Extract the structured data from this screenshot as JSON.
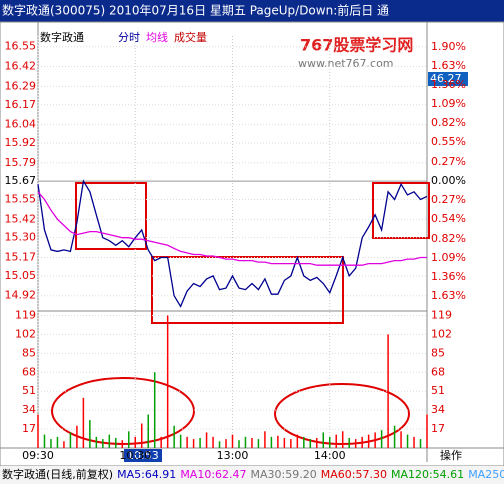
{
  "title_bar": "数字政通(300075) 2010年07月16日 星期五 PageUp/Down:前后日 通",
  "header": {
    "stock": "数字政通",
    "mode": "分时",
    "avg": "均线",
    "volume": "成交量"
  },
  "watermark": {
    "brand": "767股票学习网",
    "url": "www.net767.com"
  },
  "side_value": "46.27",
  "cursor_time": "10:53",
  "action": "操作",
  "status": [
    "数字政通(日线,前复权)",
    "MA5:64.91",
    "MA10:62.47",
    "MA30:59.20",
    "MA60:57.30",
    "MA120:54.61",
    "MA250:"
  ],
  "chart_data": [
    {
      "type": "line",
      "ylim": [
        14.82,
        16.62
      ],
      "y2lim": [
        -1.843,
        2.056
      ],
      "xlim": [
        0,
        240
      ],
      "yticks": [
        16.55,
        16.42,
        16.29,
        16.17,
        16.04,
        15.92,
        15.79,
        15.67,
        15.55,
        15.42,
        {
          "value": 15.3,
          "label": "15.30"
        },
        15.17,
        15.05,
        14.92
      ],
      "y2ticks": [
        {
          "value": 1.9,
          "label": "1.90%"
        },
        {
          "value": 1.63,
          "label": "1.63%"
        },
        {
          "value": 1.36,
          "label": "1.36%"
        },
        {
          "value": 1.09,
          "label": "1.09%"
        },
        {
          "value": 0.82,
          "label": "0.82%"
        },
        {
          "value": 0.55,
          "label": "0.55%"
        },
        {
          "value": 0.27,
          "label": "0.27%"
        },
        {
          "value": 0,
          "label": "0.00%"
        },
        {
          "value": -0.27,
          "label": "0.27%"
        },
        {
          "value": -0.54,
          "label": "0.54%"
        },
        {
          "value": -0.82,
          "label": "0.82%"
        },
        {
          "value": -1.09,
          "label": "1.09%"
        },
        {
          "value": -1.36,
          "label": "1.36%"
        },
        {
          "value": -1.63,
          "label": "1.63%"
        }
      ],
      "xticks": [
        {
          "value": 0,
          "label": "09:30"
        },
        {
          "value": 60,
          "label": "10:30"
        },
        {
          "value": 120,
          "label": "13:00"
        },
        {
          "value": 180,
          "label": "14:00"
        }
      ],
      "grid": true,
      "tick_color": "#e00000",
      "x": [
        0,
        4,
        8,
        12,
        16,
        20,
        24,
        28,
        32,
        36,
        40,
        44,
        48,
        52,
        56,
        60,
        64,
        68,
        72,
        76,
        80,
        84,
        88,
        92,
        96,
        100,
        104,
        108,
        112,
        116,
        120,
        124,
        128,
        132,
        136,
        140,
        144,
        148,
        152,
        156,
        160,
        164,
        168,
        172,
        176,
        180,
        184,
        188,
        192,
        196,
        200,
        204,
        208,
        212,
        216,
        220,
        224,
        228,
        232,
        236,
        240
      ],
      "series": [
        {
          "color": "#000090",
          "values": [
            15.65,
            15.35,
            15.22,
            15.21,
            15.22,
            15.21,
            15.4,
            15.67,
            15.6,
            15.45,
            15.3,
            15.28,
            15.25,
            15.28,
            15.24,
            15.3,
            15.35,
            15.22,
            15.15,
            15.17,
            15.17,
            14.92,
            14.85,
            14.95,
            15.0,
            14.98,
            15.03,
            15.05,
            14.96,
            14.97,
            15.05,
            14.97,
            14.96,
            15.0,
            14.96,
            15.03,
            14.93,
            14.93,
            15.02,
            15.05,
            15.17,
            15.05,
            15.02,
            15.04,
            15.0,
            14.94,
            15.05,
            15.17,
            15.05,
            15.1,
            15.3,
            15.37,
            15.45,
            15.35,
            15.6,
            15.55,
            15.65,
            15.58,
            15.6,
            15.55,
            15.57
          ]
        },
        {
          "color": "#e000e0",
          "values": [
            15.6,
            15.55,
            15.48,
            15.42,
            15.38,
            15.34,
            15.32,
            15.33,
            15.34,
            15.34,
            15.33,
            15.32,
            15.31,
            15.3,
            15.3,
            15.29,
            15.29,
            15.28,
            15.27,
            15.26,
            15.25,
            15.23,
            15.21,
            15.2,
            15.19,
            15.19,
            15.18,
            15.18,
            15.17,
            15.16,
            15.16,
            15.15,
            15.15,
            15.15,
            15.14,
            15.14,
            15.13,
            15.13,
            15.13,
            15.13,
            15.13,
            15.13,
            15.13,
            15.12,
            15.12,
            15.12,
            15.12,
            15.12,
            15.12,
            15.12,
            15.12,
            15.13,
            15.13,
            15.13,
            15.14,
            15.15,
            15.15,
            15.16,
            15.16,
            15.17,
            15.17
          ]
        }
      ]
    },
    {
      "type": "bar",
      "ylim": [
        0,
        123
      ],
      "xlim": [
        0,
        240
      ],
      "yticks": [
        119,
        102,
        85,
        68,
        51,
        34,
        17
      ],
      "up_color": "#ff0000",
      "down_color": "#00a000",
      "tick_color": "#e00000",
      "x": [
        0,
        4,
        8,
        12,
        16,
        20,
        24,
        28,
        32,
        36,
        40,
        44,
        48,
        52,
        56,
        60,
        64,
        68,
        72,
        76,
        80,
        84,
        88,
        92,
        96,
        100,
        104,
        108,
        112,
        116,
        120,
        124,
        128,
        132,
        136,
        140,
        144,
        148,
        152,
        156,
        160,
        164,
        168,
        172,
        176,
        180,
        184,
        188,
        192,
        196,
        200,
        204,
        208,
        212,
        216,
        220,
        224,
        228,
        232,
        236,
        240
      ],
      "values": [
        30,
        12,
        8,
        10,
        6,
        14,
        20,
        45,
        25,
        10,
        8,
        12,
        9,
        7,
        15,
        10,
        22,
        30,
        68,
        10,
        119,
        20,
        12,
        10,
        8,
        9,
        14,
        10,
        6,
        8,
        12,
        7,
        10,
        9,
        8,
        15,
        10,
        11,
        9,
        8,
        12,
        10,
        8,
        9,
        14,
        10,
        12,
        15,
        9,
        8,
        10,
        12,
        14,
        16,
        102,
        20,
        15,
        12,
        10,
        8,
        30
      ]
    }
  ]
}
